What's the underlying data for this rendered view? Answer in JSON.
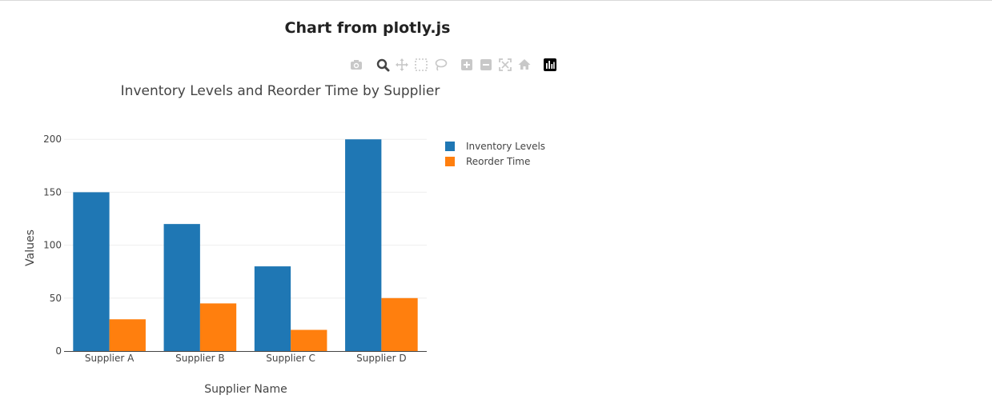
{
  "page": {
    "title": "Chart from plotly.js"
  },
  "modebar": {
    "buttons": [
      {
        "name": "camera-icon",
        "active": false
      },
      {
        "name": "zoom-icon",
        "active": true
      },
      {
        "name": "pan-icon",
        "active": false
      },
      {
        "name": "box-select-icon",
        "active": false
      },
      {
        "name": "lasso-select-icon",
        "active": false
      },
      {
        "name": "zoom-in-icon",
        "active": false
      },
      {
        "name": "zoom-out-icon",
        "active": false
      },
      {
        "name": "autoscale-icon",
        "active": false
      },
      {
        "name": "reset-axes-icon",
        "active": false
      },
      {
        "name": "plotly-logo-icon",
        "active": false
      }
    ],
    "colors": {
      "inactive": "#c8c8c8",
      "active": "#444444",
      "logo": "#000000"
    }
  },
  "chart_data": {
    "type": "bar",
    "title": "Inventory Levels and Reorder Time by Supplier",
    "xlabel": "Supplier Name",
    "ylabel": "Values",
    "categories": [
      "Supplier A",
      "Supplier B",
      "Supplier C",
      "Supplier D"
    ],
    "series": [
      {
        "name": "Inventory Levels",
        "values": [
          150,
          120,
          80,
          200
        ],
        "color": "#1f77b4"
      },
      {
        "name": "Reorder Time",
        "values": [
          30,
          45,
          20,
          50
        ],
        "color": "#ff7f0e"
      }
    ],
    "ylim": [
      0,
      210
    ],
    "yticks": [
      0,
      50,
      100,
      150,
      200
    ],
    "grid": true,
    "legend": "top-right"
  }
}
